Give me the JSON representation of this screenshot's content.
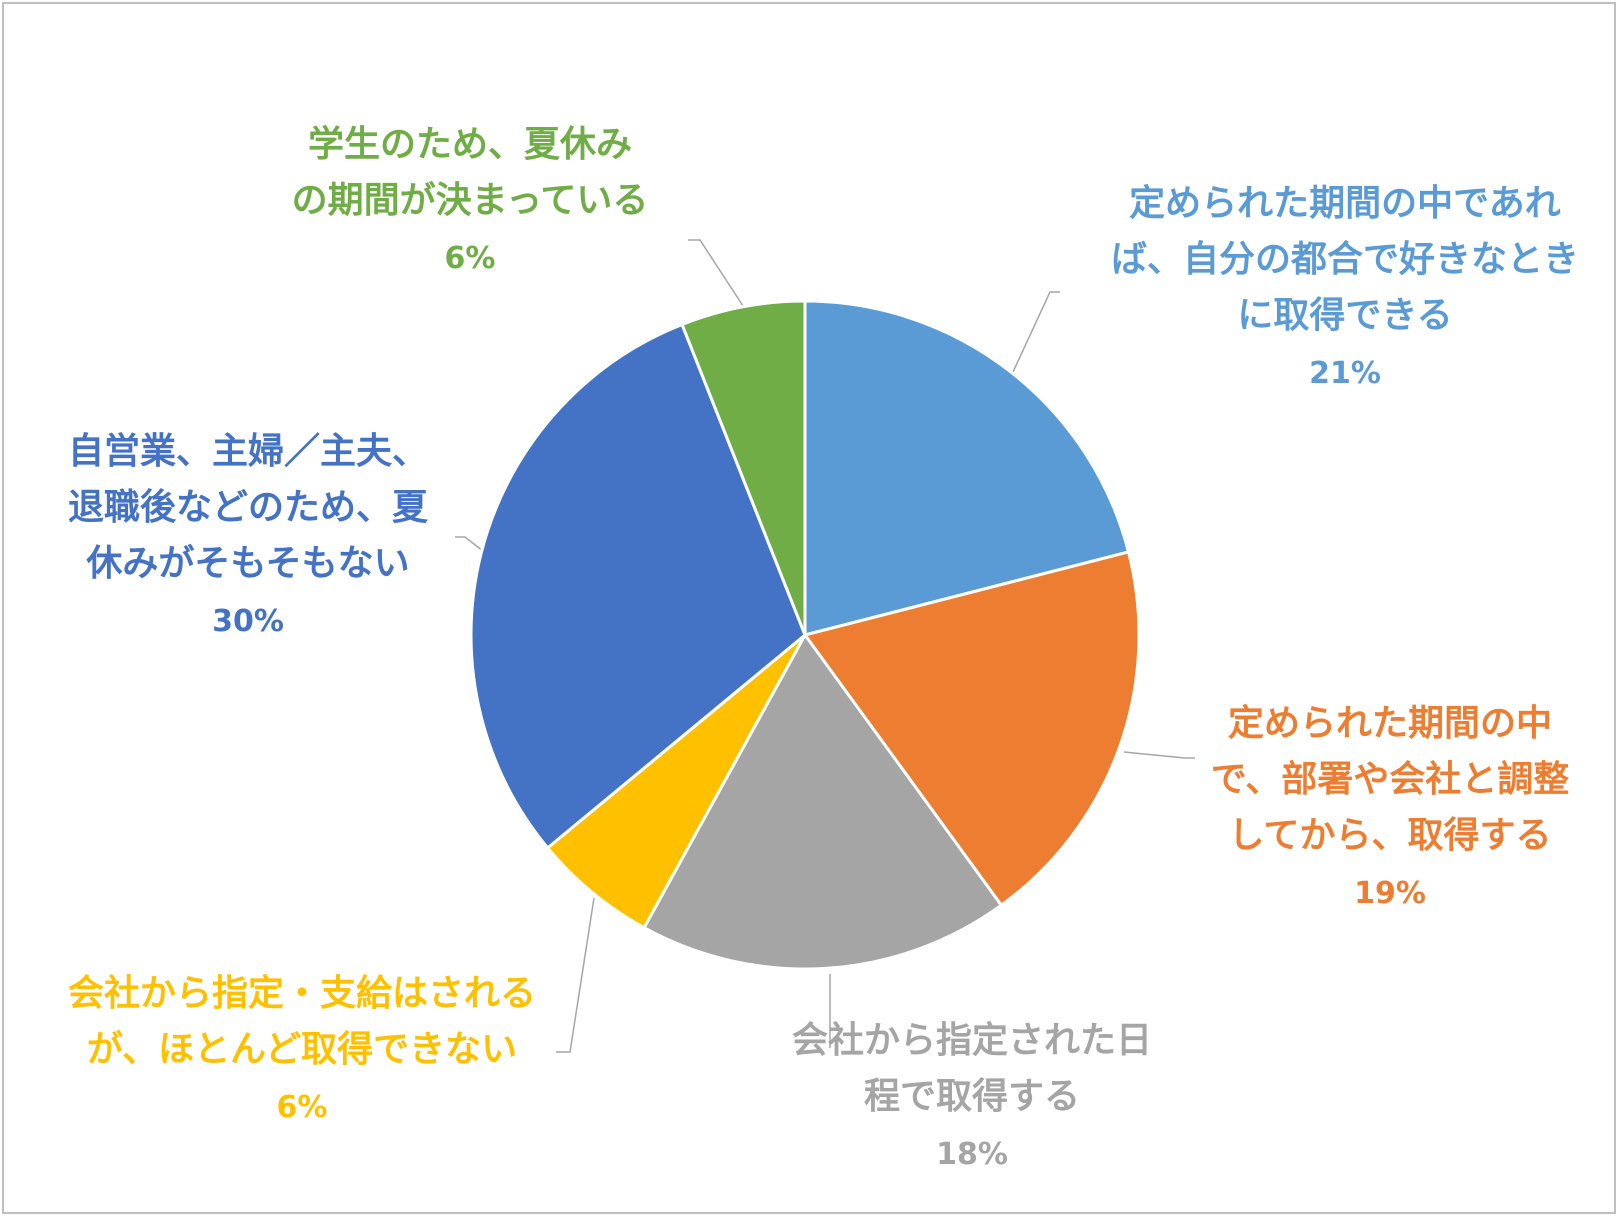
{
  "chart_data": {
    "type": "pie",
    "title": "",
    "start_angle_deg": 0,
    "direction": "clockwise",
    "legend": "none",
    "slices": [
      {
        "label_lines": [
          "定められた期間の中であれ",
          "ば、自分の都合で好きなとき",
          "に取得できる"
        ],
        "value": 21,
        "percent_label": "21%",
        "color": "#5b9bd5"
      },
      {
        "label_lines": [
          "定められた期間の中",
          "で、部署や会社と調整",
          "してから、取得する"
        ],
        "value": 19,
        "percent_label": "19%",
        "color": "#ed7d31"
      },
      {
        "label_lines": [
          "会社から指定された日",
          "程で取得する"
        ],
        "value": 18,
        "percent_label": "18%",
        "color": "#a5a5a5"
      },
      {
        "label_lines": [
          "会社から指定・支給はされる",
          "が、ほとんど取得できない"
        ],
        "value": 6,
        "percent_label": "6%",
        "color": "#ffc000"
      },
      {
        "label_lines": [
          "自営業、主婦／主夫、",
          "退職後などのため、夏",
          "休みがそもそもない"
        ],
        "value": 30,
        "percent_label": "30%",
        "color": "#4472c4"
      },
      {
        "label_lines": [
          "学生のため、夏休み",
          "の期間が決まっている"
        ],
        "value": 6,
        "percent_label": "6%",
        "color": "#70ad47"
      }
    ]
  }
}
